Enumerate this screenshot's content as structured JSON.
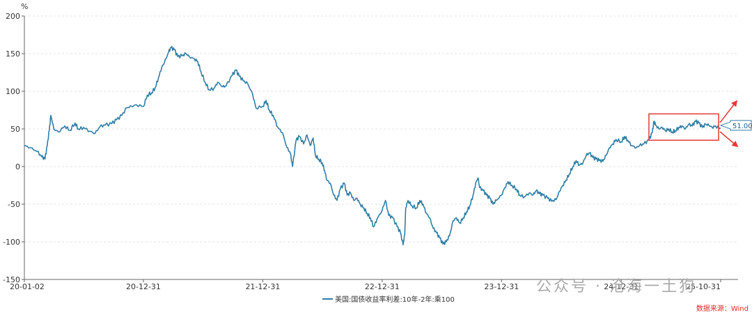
{
  "chart_data": {
    "type": "line",
    "y_unit": "%",
    "ylim": [
      -150,
      200
    ],
    "y_ticks": [
      200,
      150,
      100,
      50,
      0,
      -50,
      -100,
      -150
    ],
    "xlim": [
      "2020-01-02",
      "2025-10-31"
    ],
    "x_ticks": [
      {
        "date": "2020-01-02",
        "label": "20-01-02"
      },
      {
        "date": "2020-12-31",
        "label": "20-12-31"
      },
      {
        "date": "2021-12-31",
        "label": "21-12-31"
      },
      {
        "date": "2022-12-31",
        "label": "22-12-31"
      },
      {
        "date": "2023-12-31",
        "label": "23-12-31"
      },
      {
        "date": "2024-12-31",
        "label": "24-12-31"
      },
      {
        "date": "2025-10-31",
        "label": "25-10-31"
      }
    ],
    "grid": "horizontal-dashed",
    "legend_position": "bottom-center",
    "series": [
      {
        "name": "美国:国债收益率利差:10年-2年:乘100",
        "color": "#2e7ea6",
        "points": [
          [
            "2020-01-02",
            28
          ],
          [
            "2020-01-20",
            25
          ],
          [
            "2020-02-10",
            20
          ],
          [
            "2020-02-24",
            13
          ],
          [
            "2020-03-05",
            10
          ],
          [
            "2020-03-12",
            28
          ],
          [
            "2020-03-18",
            48
          ],
          [
            "2020-03-23",
            68
          ],
          [
            "2020-04-01",
            50
          ],
          [
            "2020-04-15",
            46
          ],
          [
            "2020-05-05",
            54
          ],
          [
            "2020-05-20",
            48
          ],
          [
            "2020-06-05",
            58
          ],
          [
            "2020-06-15",
            50
          ],
          [
            "2020-07-01",
            52
          ],
          [
            "2020-07-20",
            47
          ],
          [
            "2020-08-05",
            44
          ],
          [
            "2020-08-20",
            53
          ],
          [
            "2020-09-05",
            55
          ],
          [
            "2020-09-25",
            57
          ],
          [
            "2020-10-10",
            62
          ],
          [
            "2020-10-26",
            68
          ],
          [
            "2020-11-10",
            78
          ],
          [
            "2020-11-25",
            80
          ],
          [
            "2020-12-10",
            82
          ],
          [
            "2020-12-31",
            80
          ],
          [
            "2021-01-12",
            95
          ],
          [
            "2021-01-25",
            98
          ],
          [
            "2021-02-05",
            105
          ],
          [
            "2021-02-15",
            118
          ],
          [
            "2021-02-25",
            132
          ],
          [
            "2021-03-05",
            138
          ],
          [
            "2021-03-18",
            152
          ],
          [
            "2021-03-25",
            158
          ],
          [
            "2021-04-05",
            155
          ],
          [
            "2021-04-15",
            146
          ],
          [
            "2021-04-28",
            147
          ],
          [
            "2021-05-10",
            150
          ],
          [
            "2021-05-20",
            146
          ],
          [
            "2021-06-05",
            143
          ],
          [
            "2021-06-15",
            140
          ],
          [
            "2021-06-25",
            126
          ],
          [
            "2021-07-08",
            112
          ],
          [
            "2021-07-20",
            102
          ],
          [
            "2021-08-04",
            104
          ],
          [
            "2021-08-15",
            112
          ],
          [
            "2021-08-30",
            106
          ],
          [
            "2021-09-10",
            107
          ],
          [
            "2021-09-28",
            121
          ],
          [
            "2021-10-10",
            128
          ],
          [
            "2021-10-20",
            120
          ],
          [
            "2021-11-01",
            114
          ],
          [
            "2021-11-15",
            110
          ],
          [
            "2021-11-30",
            96
          ],
          [
            "2021-12-10",
            78
          ],
          [
            "2021-12-31",
            80
          ],
          [
            "2022-01-10",
            88
          ],
          [
            "2022-01-20",
            75
          ],
          [
            "2022-02-01",
            68
          ],
          [
            "2022-02-15",
            52
          ],
          [
            "2022-03-01",
            45
          ],
          [
            "2022-03-15",
            25
          ],
          [
            "2022-03-25",
            18
          ],
          [
            "2022-04-01",
            0
          ],
          [
            "2022-04-12",
            35
          ],
          [
            "2022-04-22",
            40
          ],
          [
            "2022-05-05",
            30
          ],
          [
            "2022-05-15",
            42
          ],
          [
            "2022-05-25",
            28
          ],
          [
            "2022-06-03",
            38
          ],
          [
            "2022-06-10",
            15
          ],
          [
            "2022-06-20",
            10
          ],
          [
            "2022-07-01",
            5
          ],
          [
            "2022-07-08",
            -5
          ],
          [
            "2022-07-15",
            -18
          ],
          [
            "2022-07-25",
            -22
          ],
          [
            "2022-08-05",
            -38
          ],
          [
            "2022-08-15",
            -45
          ],
          [
            "2022-08-25",
            -30
          ],
          [
            "2022-09-06",
            -22
          ],
          [
            "2022-09-15",
            -38
          ],
          [
            "2022-09-25",
            -35
          ],
          [
            "2022-10-05",
            -45
          ],
          [
            "2022-10-15",
            -42
          ],
          [
            "2022-10-25",
            -50
          ],
          [
            "2022-11-05",
            -55
          ],
          [
            "2022-11-15",
            -62
          ],
          [
            "2022-11-25",
            -68
          ],
          [
            "2022-12-05",
            -80
          ],
          [
            "2022-12-15",
            -70
          ],
          [
            "2022-12-31",
            -58
          ],
          [
            "2023-01-10",
            -45
          ],
          [
            "2023-01-20",
            -65
          ],
          [
            "2023-02-01",
            -68
          ],
          [
            "2023-02-15",
            -80
          ],
          [
            "2023-02-25",
            -88
          ],
          [
            "2023-03-05",
            -104
          ],
          [
            "2023-03-10",
            -90
          ],
          [
            "2023-03-13",
            -55
          ],
          [
            "2023-03-20",
            -45
          ],
          [
            "2023-04-01",
            -52
          ],
          [
            "2023-04-15",
            -55
          ],
          [
            "2023-04-25",
            -45
          ],
          [
            "2023-05-05",
            -50
          ],
          [
            "2023-05-15",
            -62
          ],
          [
            "2023-05-25",
            -68
          ],
          [
            "2023-06-05",
            -82
          ],
          [
            "2023-06-15",
            -88
          ],
          [
            "2023-06-25",
            -95
          ],
          [
            "2023-07-05",
            -103
          ],
          [
            "2023-07-15",
            -100
          ],
          [
            "2023-07-25",
            -92
          ],
          [
            "2023-08-05",
            -72
          ],
          [
            "2023-08-15",
            -68
          ],
          [
            "2023-08-25",
            -75
          ],
          [
            "2023-09-05",
            -68
          ],
          [
            "2023-09-15",
            -60
          ],
          [
            "2023-09-25",
            -52
          ],
          [
            "2023-10-05",
            -38
          ],
          [
            "2023-10-13",
            -22
          ],
          [
            "2023-10-20",
            -15
          ],
          [
            "2023-10-25",
            -28
          ],
          [
            "2023-11-05",
            -32
          ],
          [
            "2023-11-15",
            -38
          ],
          [
            "2023-11-25",
            -42
          ],
          [
            "2023-12-05",
            -50
          ],
          [
            "2023-12-15",
            -45
          ],
          [
            "2023-12-31",
            -38
          ],
          [
            "2024-01-10",
            -28
          ],
          [
            "2024-01-20",
            -20
          ],
          [
            "2024-02-01",
            -25
          ],
          [
            "2024-02-15",
            -30
          ],
          [
            "2024-02-25",
            -38
          ],
          [
            "2024-03-10",
            -40
          ],
          [
            "2024-03-25",
            -35
          ],
          [
            "2024-04-05",
            -38
          ],
          [
            "2024-04-15",
            -32
          ],
          [
            "2024-04-25",
            -36
          ],
          [
            "2024-05-05",
            -38
          ],
          [
            "2024-05-20",
            -42
          ],
          [
            "2024-06-01",
            -46
          ],
          [
            "2024-06-15",
            -44
          ],
          [
            "2024-06-25",
            -33
          ],
          [
            "2024-07-05",
            -25
          ],
          [
            "2024-07-15",
            -18
          ],
          [
            "2024-07-25",
            -10
          ],
          [
            "2024-08-05",
            0
          ],
          [
            "2024-08-15",
            8
          ],
          [
            "2024-08-25",
            2
          ],
          [
            "2024-09-05",
            5
          ],
          [
            "2024-09-15",
            15
          ],
          [
            "2024-09-25",
            18
          ],
          [
            "2024-10-05",
            12
          ],
          [
            "2024-10-15",
            10
          ],
          [
            "2024-10-25",
            8
          ],
          [
            "2024-11-05",
            7
          ],
          [
            "2024-11-15",
            15
          ],
          [
            "2024-11-25",
            25
          ],
          [
            "2024-12-05",
            30
          ],
          [
            "2024-12-15",
            36
          ],
          [
            "2024-12-31",
            33
          ],
          [
            "2025-01-10",
            40
          ],
          [
            "2025-01-20",
            35
          ],
          [
            "2025-02-01",
            28
          ],
          [
            "2025-02-15",
            25
          ],
          [
            "2025-02-25",
            28
          ],
          [
            "2025-03-10",
            30
          ],
          [
            "2025-03-25",
            35
          ],
          [
            "2025-04-05",
            45
          ],
          [
            "2025-04-10",
            60
          ],
          [
            "2025-04-15",
            55
          ],
          [
            "2025-04-25",
            50
          ],
          [
            "2025-05-05",
            52
          ],
          [
            "2025-05-15",
            48
          ],
          [
            "2025-05-25",
            50
          ],
          [
            "2025-06-05",
            46
          ],
          [
            "2025-06-15",
            48
          ],
          [
            "2025-06-25",
            52
          ],
          [
            "2025-07-05",
            54
          ],
          [
            "2025-07-15",
            50
          ],
          [
            "2025-07-25",
            56
          ],
          [
            "2025-08-05",
            54
          ],
          [
            "2025-08-15",
            60
          ],
          [
            "2025-08-25",
            58
          ],
          [
            "2025-09-05",
            52
          ],
          [
            "2025-09-15",
            56
          ],
          [
            "2025-09-25",
            55
          ],
          [
            "2025-10-05",
            52
          ],
          [
            "2025-10-15",
            54
          ],
          [
            "2025-10-31",
            51
          ]
        ]
      }
    ],
    "highlight_box": {
      "x_start": "2025-04-01",
      "x_end": "2025-10-31",
      "y_min": 35,
      "y_max": 70,
      "color": "#e53935"
    },
    "annotations": [
      {
        "type": "callout",
        "text": "51.00",
        "date": "2025-10-31",
        "value": 51
      },
      {
        "type": "arrow-up",
        "color": "#e53935"
      },
      {
        "type": "arrow-down",
        "color": "#e53935"
      }
    ],
    "source": "数据来源：Wind"
  },
  "watermark": {
    "text": "公众号 · 沧海一土狗"
  }
}
